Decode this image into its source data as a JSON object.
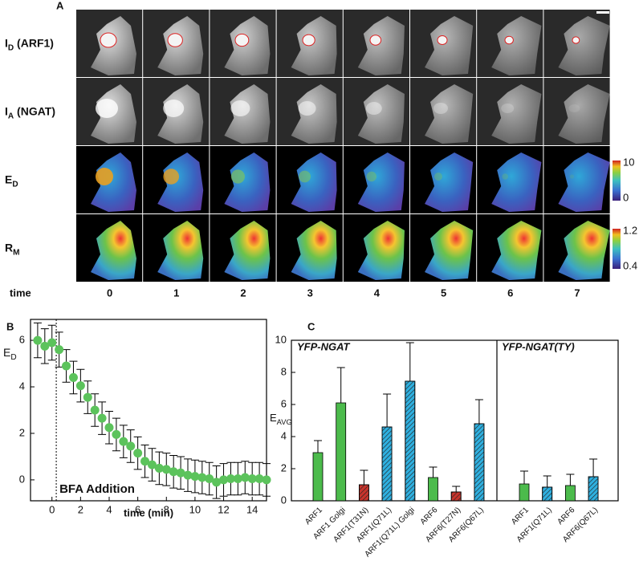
{
  "panel_a": {
    "label": "A",
    "rows": [
      {
        "main": "I",
        "sub": "D",
        "rest": " (ARF1)"
      },
      {
        "main": "I",
        "sub": "A",
        "rest": " (NGAT)"
      },
      {
        "main": "E",
        "sub": "D"
      },
      {
        "main": "R",
        "sub": "M"
      }
    ],
    "time_label": "time",
    "times": [
      "0",
      "1",
      "2",
      "3",
      "4",
      "5",
      "6",
      "7"
    ],
    "colorbars": [
      {
        "max": "10",
        "min": "0"
      },
      {
        "max": "1.2",
        "min": "0.4"
      }
    ]
  },
  "chart_data": [
    {
      "type": "scatter",
      "label": "B",
      "ylabel": {
        "main": "E",
        "sub": "D"
      },
      "xlabel": "time (min)",
      "annotation": {
        "text": "BFA Addition",
        "x": 0.3
      },
      "color": "#5cc35c",
      "x": [
        -1,
        -0.5,
        0,
        0.5,
        1,
        1.5,
        2,
        2.5,
        3,
        3.5,
        4,
        4.5,
        5,
        5.5,
        6,
        6.5,
        7,
        7.5,
        8,
        8.5,
        9,
        9.5,
        10,
        10.5,
        11,
        11.5,
        12,
        12.5,
        13,
        13.5,
        14,
        14.5,
        15
      ],
      "values": [
        6.0,
        5.75,
        5.9,
        5.6,
        4.9,
        4.4,
        4.05,
        3.55,
        3.0,
        2.65,
        2.25,
        1.95,
        1.65,
        1.45,
        1.15,
        0.8,
        0.65,
        0.5,
        0.45,
        0.35,
        0.3,
        0.2,
        0.15,
        0.1,
        0.05,
        -0.1,
        0.0,
        0.05,
        0.05,
        0.1,
        0.05,
        0.05,
        0.0
      ],
      "errors": [
        0.75,
        0.75,
        0.75,
        0.75,
        0.7,
        0.7,
        0.7,
        0.7,
        0.7,
        0.7,
        0.7,
        0.7,
        0.7,
        0.7,
        0.7,
        0.7,
        0.7,
        0.7,
        0.7,
        0.7,
        0.7,
        0.7,
        0.7,
        0.7,
        0.7,
        0.7,
        0.7,
        0.7,
        0.7,
        0.7,
        0.7,
        0.7,
        0.7
      ],
      "xlim": [
        -1.5,
        15
      ],
      "ylim": [
        -0.9,
        6.9
      ],
      "xticks": [
        0,
        2,
        4,
        6,
        8,
        10,
        12,
        14
      ],
      "yticks": [
        0,
        2,
        4,
        6
      ]
    },
    {
      "type": "bar",
      "label": "C",
      "ylabel": {
        "main": "E",
        "sub": "AVG"
      },
      "ylim": [
        0,
        10
      ],
      "yticks": [
        0,
        2,
        4,
        6,
        8,
        10
      ],
      "groups": [
        {
          "title": "YFP-NGAT",
          "categories": [
            "ARF1",
            "ARF1 Golgi",
            "ARF1(T31N)",
            "ARF1(Q71L)",
            "ARF1(Q71L) Golgi",
            "ARF6",
            "ARF6(T27N)",
            "ARF6(Q67L)"
          ],
          "values": [
            3.0,
            6.1,
            1.0,
            4.6,
            7.45,
            1.45,
            0.55,
            4.8
          ],
          "errors": [
            0.75,
            2.2,
            0.9,
            2.05,
            2.4,
            0.65,
            0.35,
            1.5
          ],
          "colors": [
            "#4cbb4c",
            "#4cbb4c",
            "#c8342c",
            "#2fb0e0",
            "#2fb0e0",
            "#4cbb4c",
            "#c8342c",
            "#2fb0e0"
          ],
          "hatch": [
            false,
            false,
            true,
            true,
            true,
            false,
            true,
            true
          ]
        },
        {
          "title": "YFP-NGAT(TY)",
          "categories": [
            "ARF1",
            "ARF1(Q71L)",
            "ARF6",
            "ARF6(Q67L)"
          ],
          "values": [
            1.05,
            0.85,
            0.95,
            1.5
          ],
          "errors": [
            0.8,
            0.7,
            0.7,
            1.1
          ],
          "colors": [
            "#4cbb4c",
            "#2fb0e0",
            "#4cbb4c",
            "#2fb0e0"
          ],
          "hatch": [
            false,
            true,
            false,
            true
          ]
        }
      ]
    }
  ]
}
